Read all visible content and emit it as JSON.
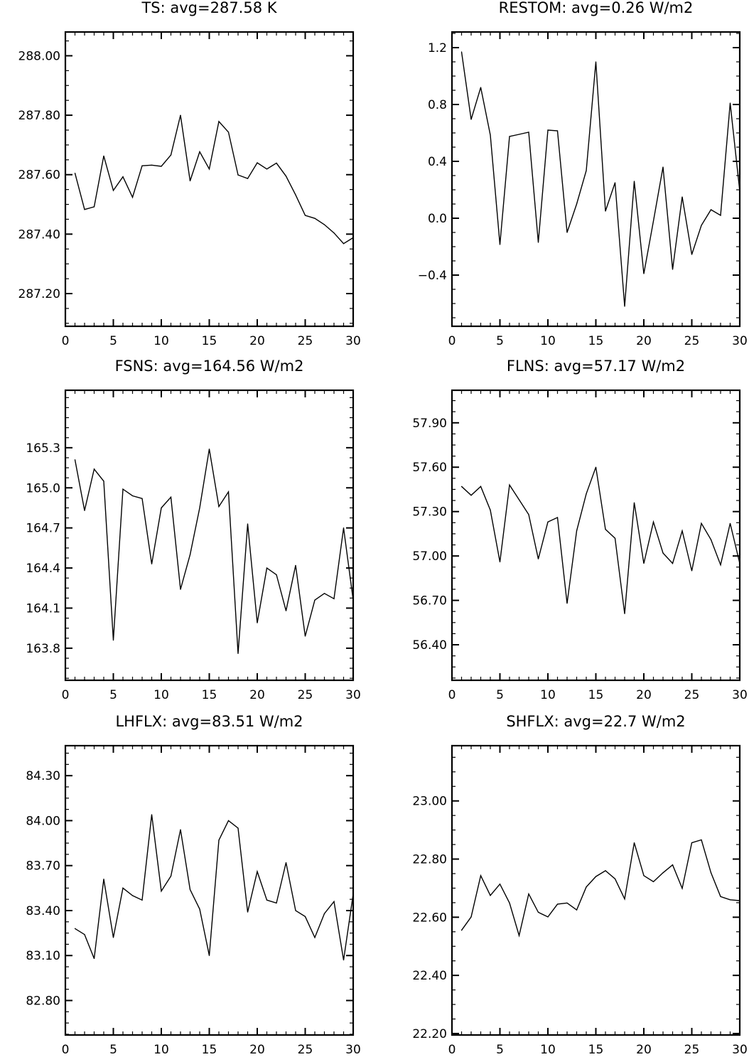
{
  "chart_data": [
    {
      "type": "line",
      "title": "TS: avg=287.58 K",
      "x": [
        1,
        2,
        3,
        4,
        5,
        6,
        7,
        8,
        9,
        10,
        11,
        12,
        13,
        14,
        15,
        16,
        17,
        18,
        19,
        20,
        21,
        22,
        23,
        24,
        25,
        26,
        27,
        28,
        29,
        30
      ],
      "values": [
        287.605,
        287.483,
        287.492,
        287.663,
        287.547,
        287.593,
        287.524,
        287.63,
        287.632,
        287.628,
        287.666,
        287.8,
        287.579,
        287.677,
        287.619,
        287.779,
        287.743,
        287.599,
        287.587,
        287.64,
        287.619,
        287.639,
        287.595,
        287.532,
        287.463,
        287.453,
        287.432,
        287.404,
        287.368,
        287.388
      ],
      "xlim": [
        0,
        30
      ],
      "ylim": [
        287.09,
        288.08
      ],
      "xticks": [
        0,
        5,
        10,
        15,
        20,
        25,
        30
      ],
      "xtick_labels": [
        "0",
        "5",
        "10",
        "15",
        "20",
        "25",
        "30"
      ],
      "yticks": [
        287.2,
        287.4,
        287.6,
        287.8,
        288.0
      ],
      "ytick_labels": [
        "287.20",
        "287.40",
        "287.60",
        "287.80",
        "288.00"
      ]
    },
    {
      "type": "line",
      "title": "RESTOM: avg=0.26 W/m2",
      "x": [
        1,
        2,
        3,
        4,
        5,
        6,
        7,
        8,
        9,
        10,
        11,
        12,
        13,
        14,
        15,
        16,
        17,
        18,
        19,
        20,
        21,
        22,
        23,
        24,
        25,
        26,
        27,
        28,
        29,
        30
      ],
      "values": [
        1.17,
        0.695,
        0.92,
        0.585,
        -0.185,
        0.575,
        0.59,
        0.605,
        -0.17,
        0.62,
        0.615,
        -0.1,
        0.1,
        0.335,
        1.1,
        0.05,
        0.25,
        -0.62,
        0.26,
        -0.39,
        -0.02,
        0.36,
        -0.36,
        0.15,
        -0.255,
        -0.05,
        0.06,
        0.02,
        0.81,
        0.19
      ],
      "xlim": [
        0,
        30
      ],
      "ylim": [
        -0.76,
        1.31
      ],
      "xticks": [
        0,
        5,
        10,
        15,
        20,
        25,
        30
      ],
      "xtick_labels": [
        "0",
        "5",
        "10",
        "15",
        "20",
        "25",
        "30"
      ],
      "yticks": [
        -0.4,
        0.0,
        0.4,
        0.8,
        1.2
      ],
      "ytick_labels": [
        "−0.4",
        "0.0",
        "0.4",
        "0.8",
        "1.2"
      ]
    },
    {
      "type": "line",
      "title": "FSNS: avg=164.56 W/m2",
      "x": [
        1,
        2,
        3,
        4,
        5,
        6,
        7,
        8,
        9,
        10,
        11,
        12,
        13,
        14,
        15,
        16,
        17,
        18,
        19,
        20,
        21,
        22,
        23,
        24,
        25,
        26,
        27,
        28,
        29,
        30
      ],
      "values": [
        165.21,
        164.83,
        165.14,
        165.05,
        163.86,
        164.99,
        164.94,
        164.92,
        164.43,
        164.85,
        164.93,
        164.24,
        164.5,
        164.85,
        165.29,
        164.86,
        164.97,
        163.76,
        164.73,
        163.99,
        164.4,
        164.35,
        164.08,
        164.42,
        163.89,
        164.16,
        164.21,
        164.17,
        164.7,
        164.16
      ],
      "xlim": [
        0,
        30
      ],
      "ylim": [
        163.56,
        165.73
      ],
      "xticks": [
        0,
        5,
        10,
        15,
        20,
        25,
        30
      ],
      "xtick_labels": [
        "0",
        "5",
        "10",
        "15",
        "20",
        "25",
        "30"
      ],
      "yticks": [
        163.8,
        164.1,
        164.4,
        164.7,
        165.0,
        165.3
      ],
      "ytick_labels": [
        "163.8",
        "164.1",
        "164.4",
        "164.7",
        "165.0",
        "165.3"
      ]
    },
    {
      "type": "line",
      "title": "FLNS: avg=57.17 W/m2",
      "x": [
        1,
        2,
        3,
        4,
        5,
        6,
        7,
        8,
        9,
        10,
        11,
        12,
        13,
        14,
        15,
        16,
        17,
        18,
        19,
        20,
        21,
        22,
        23,
        24,
        25,
        26,
        27,
        28,
        29,
        30
      ],
      "values": [
        57.47,
        57.41,
        57.47,
        57.31,
        56.96,
        57.48,
        57.38,
        57.28,
        56.98,
        57.23,
        57.26,
        56.68,
        57.17,
        57.42,
        57.6,
        57.18,
        57.12,
        56.61,
        57.36,
        56.95,
        57.23,
        57.02,
        56.95,
        57.17,
        56.9,
        57.22,
        57.11,
        56.94,
        57.22,
        56.95
      ],
      "xlim": [
        0,
        30
      ],
      "ylim": [
        56.16,
        58.12
      ],
      "xticks": [
        0,
        5,
        10,
        15,
        20,
        25,
        30
      ],
      "xtick_labels": [
        "0",
        "5",
        "10",
        "15",
        "20",
        "25",
        "30"
      ],
      "yticks": [
        56.4,
        56.7,
        57.0,
        57.3,
        57.6,
        57.9
      ],
      "ytick_labels": [
        "56.40",
        "56.70",
        "57.00",
        "57.30",
        "57.60",
        "57.90"
      ]
    },
    {
      "type": "line",
      "title": "LHFLX: avg=83.51 W/m2",
      "x": [
        1,
        2,
        3,
        4,
        5,
        6,
        7,
        8,
        9,
        10,
        11,
        12,
        13,
        14,
        15,
        16,
        17,
        18,
        19,
        20,
        21,
        22,
        23,
        24,
        25,
        26,
        27,
        28,
        29,
        30
      ],
      "values": [
        83.28,
        83.24,
        83.08,
        83.61,
        83.22,
        83.55,
        83.5,
        83.47,
        84.04,
        83.53,
        83.63,
        83.94,
        83.54,
        83.41,
        83.1,
        83.87,
        84.0,
        83.95,
        83.39,
        83.66,
        83.47,
        83.45,
        83.72,
        83.4,
        83.36,
        83.22,
        83.38,
        83.46,
        83.07,
        83.51
      ],
      "xlim": [
        0,
        30
      ],
      "ylim": [
        82.57,
        84.5
      ],
      "xticks": [
        0,
        5,
        10,
        15,
        20,
        25,
        30
      ],
      "xtick_labels": [
        "0",
        "5",
        "10",
        "15",
        "20",
        "25",
        "30"
      ],
      "yticks": [
        82.8,
        83.1,
        83.4,
        83.7,
        84.0,
        84.3
      ],
      "ytick_labels": [
        "82.80",
        "83.10",
        "83.40",
        "83.70",
        "84.00",
        "84.30"
      ]
    },
    {
      "type": "line",
      "title": "SHFLX: avg=22.7 W/m2",
      "x": [
        1,
        2,
        3,
        4,
        5,
        6,
        7,
        8,
        9,
        10,
        11,
        12,
        13,
        14,
        15,
        16,
        17,
        18,
        19,
        20,
        21,
        22,
        23,
        24,
        25,
        26,
        27,
        28,
        29,
        30
      ],
      "values": [
        22.555,
        22.601,
        22.743,
        22.675,
        22.714,
        22.649,
        22.537,
        22.68,
        22.617,
        22.601,
        22.645,
        22.649,
        22.625,
        22.704,
        22.74,
        22.76,
        22.732,
        22.663,
        22.856,
        22.743,
        22.722,
        22.753,
        22.78,
        22.699,
        22.856,
        22.866,
        22.753,
        22.671,
        22.66,
        22.657
      ],
      "xlim": [
        0,
        30
      ],
      "ylim": [
        22.195,
        23.19
      ],
      "xticks": [
        0,
        5,
        10,
        15,
        20,
        25,
        30
      ],
      "xtick_labels": [
        "0",
        "5",
        "10",
        "15",
        "20",
        "25",
        "30"
      ],
      "yticks": [
        22.2,
        22.4,
        22.6,
        22.8,
        23.0
      ],
      "ytick_labels": [
        "22.20",
        "22.40",
        "22.60",
        "22.80",
        "23.00"
      ]
    }
  ]
}
